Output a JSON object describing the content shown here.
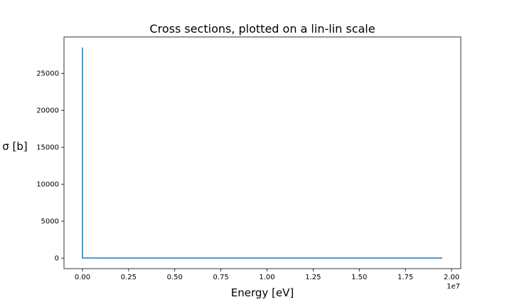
{
  "chart_data": {
    "type": "line",
    "title": "Cross sections, plotted on a lin-lin scale",
    "xlabel": "Energy [eV]",
    "ylabel": "σ [b]",
    "x_offset_label": "1e7",
    "xlim": [
      -1000000,
      20500000
    ],
    "ylim": [
      -1425,
      29925
    ],
    "x_ticks": [
      0,
      2500000,
      5000000,
      7500000,
      10000000,
      12500000,
      15000000,
      17500000,
      20000000
    ],
    "x_tick_labels": [
      "0.00",
      "0.25",
      "0.50",
      "0.75",
      "1.00",
      "1.25",
      "1.50",
      "1.75",
      "2.00"
    ],
    "y_ticks": [
      0,
      5000,
      10000,
      15000,
      20000,
      25000
    ],
    "y_tick_labels": [
      "0",
      "5000",
      "10000",
      "15000",
      "20000",
      "25000"
    ],
    "grid": false,
    "color": "#1f77b4",
    "series": [
      {
        "x": [
          1e-05,
          1,
          10,
          100,
          1000,
          10000,
          100000,
          1000000,
          5000000,
          10000000,
          15000000,
          19500000
        ],
        "values": [
          28500,
          120,
          40,
          20,
          20,
          20,
          15,
          10,
          8,
          6,
          5,
          5
        ]
      }
    ]
  }
}
